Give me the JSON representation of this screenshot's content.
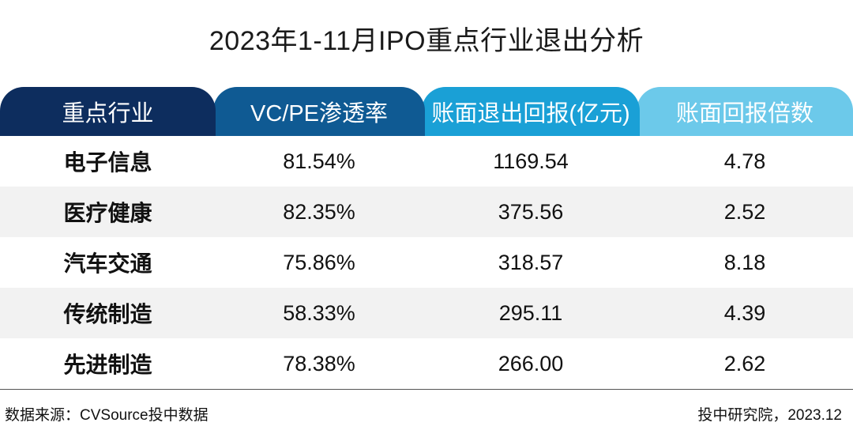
{
  "chart_data": {
    "type": "table",
    "title": "2023年1-11月IPO重点行业退出分析",
    "columns": [
      "重点行业",
      "VC/PE渗透率",
      "账面退出回报(亿元)",
      "账面回报倍数"
    ],
    "header_colors": [
      "#0d2d5e",
      "#0f5a93",
      "#1aa0d6",
      "#6cc9ea"
    ],
    "rows": [
      [
        "电子信息",
        "81.54%",
        "1169.54",
        "4.78"
      ],
      [
        "医疗健康",
        "82.35%",
        "375.56",
        "2.52"
      ],
      [
        "汽车交通",
        "75.86%",
        "318.57",
        "8.18"
      ],
      [
        "传统制造",
        "58.33%",
        "295.11",
        "4.39"
      ],
      [
        "先进制造",
        "78.38%",
        "266.00",
        "2.62"
      ]
    ],
    "source": "数据来源：CVSource投中数据",
    "credit": "投中研究院，2023.12"
  }
}
